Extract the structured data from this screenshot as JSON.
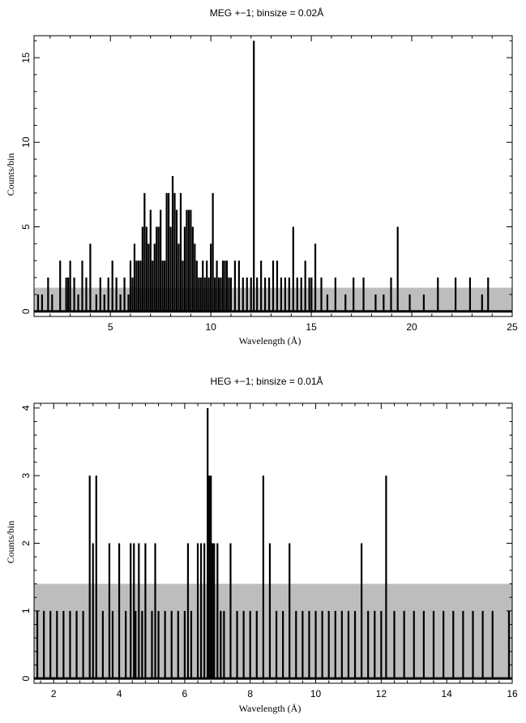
{
  "chart_data": [
    {
      "type": "line",
      "title": "MEG +−1; binsize = 0.02Å",
      "xlabel": "Wavelength (Å)",
      "ylabel": "Counts/bin",
      "xlim": [
        1.2,
        25
      ],
      "ylim": [
        -0.3,
        16.3
      ],
      "xticks": [
        "5",
        "10",
        "15",
        "20",
        "25"
      ],
      "yticks": [
        "0",
        "5",
        "10",
        "15"
      ],
      "background_band": {
        "color": "#bdbdbd",
        "ymin": 0,
        "ymax": 1.4
      },
      "series": [
        {
          "role": "data",
          "color": "#000000",
          "x": [
            1.4,
            1.6,
            1.9,
            2.1,
            2.5,
            2.8,
            2.9,
            3.0,
            3.2,
            3.4,
            3.6,
            3.8,
            4.0,
            4.3,
            4.5,
            4.7,
            4.9,
            5.1,
            5.3,
            5.5,
            5.7,
            5.9,
            6.0,
            6.1,
            6.2,
            6.3,
            6.4,
            6.5,
            6.6,
            6.7,
            6.8,
            6.9,
            7.0,
            7.1,
            7.2,
            7.3,
            7.4,
            7.5,
            7.6,
            7.7,
            7.8,
            7.9,
            8.0,
            8.1,
            8.2,
            8.3,
            8.4,
            8.5,
            8.6,
            8.7,
            8.8,
            8.9,
            9.0,
            9.1,
            9.2,
            9.3,
            9.4,
            9.5,
            9.6,
            9.7,
            9.8,
            9.9,
            10.0,
            10.1,
            10.2,
            10.3,
            10.4,
            10.5,
            10.6,
            10.7,
            10.8,
            10.9,
            11.0,
            11.2,
            11.4,
            11.6,
            11.8,
            12.0,
            12.14,
            12.3,
            12.5,
            12.7,
            12.9,
            13.1,
            13.3,
            13.5,
            13.7,
            13.9,
            14.1,
            14.3,
            14.5,
            14.7,
            14.9,
            15.01,
            15.2,
            15.5,
            15.8,
            16.2,
            16.7,
            17.1,
            17.6,
            18.2,
            18.6,
            18.97,
            19.3,
            19.9,
            20.6,
            21.3,
            22.18,
            22.9,
            23.5,
            23.8
          ],
          "y": [
            1,
            1,
            2,
            1,
            3,
            2,
            2,
            3,
            2,
            1,
            3,
            2,
            4,
            1,
            2,
            1,
            2,
            3,
            2,
            1,
            2,
            1,
            3,
            2,
            4,
            3,
            3,
            3,
            5,
            7,
            5,
            4,
            6,
            3,
            4,
            5,
            5,
            6,
            3,
            3,
            7,
            7,
            5,
            8,
            7,
            6,
            4,
            7,
            3,
            5,
            6,
            6,
            6,
            5,
            4,
            3,
            2,
            2,
            3,
            2,
            3,
            2,
            4,
            7,
            2,
            3,
            2,
            2,
            3,
            3,
            3,
            2,
            2,
            3,
            3,
            2,
            2,
            2,
            16,
            2,
            3,
            2,
            2,
            3,
            3,
            2,
            2,
            2,
            5,
            2,
            2,
            3,
            2,
            2,
            4,
            2,
            1,
            2,
            1,
            2,
            2,
            1,
            1,
            2,
            5,
            1,
            1,
            2,
            2,
            2,
            1,
            2
          ]
        }
      ]
    },
    {
      "type": "line",
      "title": "HEG +−1; binsize = 0.01Å",
      "xlabel": "Wavelength (Å)",
      "ylabel": "Counts/bin",
      "xlim": [
        1.4,
        16
      ],
      "ylim": [
        -0.07,
        4.07
      ],
      "xticks": [
        "2",
        "4",
        "6",
        "8",
        "10",
        "12",
        "14",
        "16"
      ],
      "yticks": [
        "0",
        "1",
        "2",
        "3",
        "4"
      ],
      "background_band": {
        "color": "#bdbdbd",
        "ymin": 0,
        "ymax": 1.4
      },
      "series": [
        {
          "role": "data",
          "color": "#000000",
          "x": [
            1.5,
            1.7,
            1.9,
            2.1,
            2.3,
            2.5,
            2.7,
            2.9,
            3.1,
            3.2,
            3.3,
            3.5,
            3.7,
            3.8,
            4.0,
            4.2,
            4.35,
            4.45,
            4.5,
            4.6,
            4.7,
            4.8,
            5.0,
            5.1,
            5.2,
            5.4,
            5.6,
            5.8,
            6.0,
            6.1,
            6.2,
            6.4,
            6.5,
            6.6,
            6.7,
            6.75,
            6.8,
            6.85,
            6.9,
            7.0,
            7.1,
            7.2,
            7.4,
            7.6,
            7.8,
            8.0,
            8.2,
            8.4,
            8.6,
            8.8,
            9.0,
            9.2,
            9.4,
            9.6,
            9.8,
            10.0,
            10.2,
            10.4,
            10.6,
            10.8,
            11.0,
            11.2,
            11.4,
            11.6,
            11.8,
            12.0,
            12.15,
            12.4,
            12.7,
            13.0,
            13.3,
            13.6,
            13.9,
            14.2,
            14.5,
            14.8,
            15.1,
            15.4,
            15.9
          ],
          "y": [
            1,
            1,
            1,
            1,
            1,
            1,
            1,
            1,
            3,
            2,
            3,
            1,
            2,
            1,
            2,
            1,
            2,
            2,
            1,
            2,
            1,
            2,
            1,
            2,
            1,
            1,
            1,
            1,
            1,
            2,
            1,
            2,
            2,
            2,
            4,
            3,
            3,
            2,
            2,
            2,
            1,
            1,
            2,
            1,
            1,
            1,
            1,
            3,
            2,
            1,
            1,
            2,
            1,
            1,
            1,
            1,
            1,
            1,
            1,
            1,
            1,
            1,
            2,
            1,
            1,
            1,
            3,
            1,
            1,
            1,
            1,
            1,
            1,
            1,
            1,
            1,
            1,
            1,
            1
          ]
        }
      ]
    }
  ]
}
